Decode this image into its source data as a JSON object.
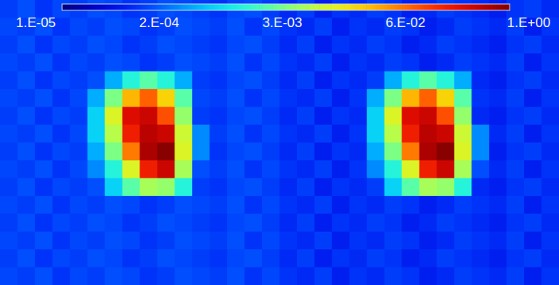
{
  "chart_data": {
    "type": "heatmap",
    "log": true,
    "tick_labels": false,
    "colorbar": {
      "range": [
        1e-05,
        1
      ],
      "ticks": [
        {
          "value": 1e-05,
          "label": "1.E-05"
        },
        {
          "value": 0.000178,
          "label": "2.E-04"
        },
        {
          "value": 0.00316,
          "label": "3.E-03"
        },
        {
          "value": 0.0562,
          "label": "6.E-02"
        },
        {
          "value": 1,
          "label": "1.E+00"
        }
      ]
    },
    "panels": [
      {
        "cells": [
          [
            8e-05,
            0.0001,
            7e-05,
            9e-05,
            8e-05,
            0.0001,
            9e-05,
            7e-05,
            8e-05,
            0.0001,
            9e-05,
            8e-05,
            7e-05,
            9e-05,
            0.0001,
            8e-05
          ],
          [
            9e-05,
            8e-05,
            0.0001,
            7e-05,
            9e-05,
            8e-05,
            0.0001,
            9e-05,
            7e-05,
            8e-05,
            0.0001,
            9e-05,
            8e-05,
            0.0001,
            7e-05,
            9e-05
          ],
          [
            8e-05,
            0.0001,
            7e-05,
            9e-05,
            8e-05,
            0.0001,
            9e-05,
            7e-05,
            8e-05,
            0.0001,
            9e-05,
            8e-05,
            7e-05,
            9e-05,
            0.0001,
            8e-05
          ],
          [
            9e-05,
            8e-05,
            0.0001,
            7e-05,
            9e-05,
            8e-05,
            0.0001,
            9e-05,
            7e-05,
            8e-05,
            0.0001,
            9e-05,
            8e-05,
            0.0001,
            7e-05,
            9e-05
          ],
          [
            8e-05,
            0.0001,
            7e-05,
            9e-05,
            8e-05,
            0.0001,
            0.0003,
            0.001,
            0.002,
            0.001,
            0.0003,
            8e-05,
            7e-05,
            9e-05,
            0.0001,
            8e-05
          ],
          [
            9e-05,
            8e-05,
            0.0001,
            7e-05,
            9e-05,
            0.0003,
            0.003,
            0.03,
            0.08,
            0.02,
            0.002,
            9e-05,
            8e-05,
            0.0001,
            7e-05,
            9e-05
          ],
          [
            8e-05,
            0.0001,
            7e-05,
            9e-05,
            8e-05,
            0.0005,
            0.01,
            0.3,
            0.4,
            0.1,
            0.004,
            8e-05,
            7e-05,
            9e-05,
            0.0001,
            8e-05
          ],
          [
            9e-05,
            8e-05,
            0.0001,
            7e-05,
            9e-05,
            0.0005,
            0.006,
            0.2,
            0.5,
            0.4,
            0.008,
            0.0002,
            8e-05,
            0.0001,
            7e-05,
            9e-05
          ],
          [
            8e-05,
            0.0001,
            7e-05,
            9e-05,
            8e-05,
            0.0003,
            0.003,
            0.06,
            0.6,
            0.9,
            0.01,
            0.0002,
            7e-05,
            9e-05,
            0.0001,
            8e-05
          ],
          [
            9e-05,
            8e-05,
            0.0001,
            7e-05,
            9e-05,
            0.0002,
            0.001,
            0.01,
            0.2,
            0.4,
            0.005,
            0.0001,
            8e-05,
            0.0001,
            7e-05,
            9e-05
          ],
          [
            8e-05,
            0.0001,
            7e-05,
            9e-05,
            8e-05,
            0.0001,
            0.0005,
            0.002,
            0.005,
            0.004,
            0.001,
            8e-05,
            7e-05,
            9e-05,
            0.0001,
            8e-05
          ],
          [
            9e-05,
            8e-05,
            0.0001,
            7e-05,
            9e-05,
            8e-05,
            0.0001,
            9e-05,
            7e-05,
            8e-05,
            0.0001,
            9e-05,
            8e-05,
            0.0001,
            7e-05,
            9e-05
          ],
          [
            8e-05,
            0.0001,
            7e-05,
            9e-05,
            8e-05,
            0.0001,
            9e-05,
            7e-05,
            8e-05,
            0.0001,
            9e-05,
            8e-05,
            7e-05,
            9e-05,
            0.0001,
            8e-05
          ],
          [
            9e-05,
            8e-05,
            0.0001,
            7e-05,
            9e-05,
            8e-05,
            0.0001,
            9e-05,
            7e-05,
            8e-05,
            0.0001,
            9e-05,
            8e-05,
            0.0001,
            7e-05,
            9e-05
          ],
          [
            8e-05,
            0.0001,
            7e-05,
            9e-05,
            8e-05,
            0.0001,
            9e-05,
            7e-05,
            8e-05,
            0.0001,
            9e-05,
            8e-05,
            7e-05,
            9e-05,
            0.0001,
            8e-05
          ],
          [
            9e-05,
            8e-05,
            0.0001,
            7e-05,
            9e-05,
            8e-05,
            0.0001,
            9e-05,
            7e-05,
            8e-05,
            0.0001,
            9e-05,
            8e-05,
            0.0001,
            7e-05,
            9e-05
          ]
        ]
      },
      {
        "cells": [
          [
            6e-05,
            8e-05,
            5e-05,
            7e-05,
            6e-05,
            8e-05,
            7e-05,
            5e-05,
            6e-05,
            8e-05,
            7e-05,
            6e-05,
            5e-05,
            7e-05,
            8e-05,
            6e-05
          ],
          [
            7e-05,
            6e-05,
            8e-05,
            5e-05,
            7e-05,
            6e-05,
            8e-05,
            7e-05,
            5e-05,
            6e-05,
            8e-05,
            7e-05,
            6e-05,
            8e-05,
            5e-05,
            7e-05
          ],
          [
            6e-05,
            8e-05,
            5e-05,
            7e-05,
            6e-05,
            8e-05,
            7e-05,
            5e-05,
            6e-05,
            8e-05,
            7e-05,
            6e-05,
            5e-05,
            7e-05,
            8e-05,
            6e-05
          ],
          [
            7e-05,
            6e-05,
            8e-05,
            5e-05,
            7e-05,
            6e-05,
            8e-05,
            7e-05,
            5e-05,
            6e-05,
            8e-05,
            7e-05,
            6e-05,
            8e-05,
            5e-05,
            7e-05
          ],
          [
            6e-05,
            8e-05,
            5e-05,
            7e-05,
            6e-05,
            8e-05,
            0.0003,
            0.001,
            0.002,
            0.001,
            0.0003,
            6e-05,
            5e-05,
            7e-05,
            8e-05,
            6e-05
          ],
          [
            7e-05,
            6e-05,
            8e-05,
            5e-05,
            7e-05,
            0.0003,
            0.003,
            0.03,
            0.08,
            0.02,
            0.002,
            7e-05,
            6e-05,
            8e-05,
            5e-05,
            7e-05
          ],
          [
            6e-05,
            8e-05,
            5e-05,
            7e-05,
            6e-05,
            0.0005,
            0.01,
            0.3,
            0.4,
            0.1,
            0.004,
            6e-05,
            5e-05,
            7e-05,
            8e-05,
            6e-05
          ],
          [
            7e-05,
            6e-05,
            8e-05,
            5e-05,
            7e-05,
            0.0005,
            0.006,
            0.2,
            0.5,
            0.4,
            0.008,
            0.0002,
            6e-05,
            8e-05,
            5e-05,
            7e-05
          ],
          [
            6e-05,
            8e-05,
            5e-05,
            7e-05,
            6e-05,
            0.0003,
            0.003,
            0.06,
            0.6,
            0.9,
            0.01,
            0.0002,
            5e-05,
            7e-05,
            8e-05,
            6e-05
          ],
          [
            7e-05,
            6e-05,
            8e-05,
            5e-05,
            7e-05,
            0.0002,
            0.001,
            0.01,
            0.2,
            0.4,
            0.005,
            0.0001,
            6e-05,
            8e-05,
            5e-05,
            7e-05
          ],
          [
            6e-05,
            8e-05,
            5e-05,
            7e-05,
            6e-05,
            8e-05,
            0.0005,
            0.002,
            0.005,
            0.004,
            0.001,
            6e-05,
            5e-05,
            7e-05,
            8e-05,
            6e-05
          ],
          [
            7e-05,
            6e-05,
            8e-05,
            5e-05,
            7e-05,
            6e-05,
            8e-05,
            7e-05,
            5e-05,
            6e-05,
            8e-05,
            7e-05,
            6e-05,
            8e-05,
            5e-05,
            7e-05
          ],
          [
            6e-05,
            8e-05,
            5e-05,
            7e-05,
            6e-05,
            8e-05,
            7e-05,
            5e-05,
            6e-05,
            8e-05,
            7e-05,
            6e-05,
            5e-05,
            7e-05,
            8e-05,
            6e-05
          ],
          [
            7e-05,
            6e-05,
            8e-05,
            5e-05,
            7e-05,
            6e-05,
            8e-05,
            7e-05,
            5e-05,
            6e-05,
            8e-05,
            7e-05,
            6e-05,
            8e-05,
            5e-05,
            7e-05
          ],
          [
            6e-05,
            8e-05,
            5e-05,
            7e-05,
            6e-05,
            8e-05,
            7e-05,
            5e-05,
            6e-05,
            8e-05,
            7e-05,
            6e-05,
            5e-05,
            7e-05,
            8e-05,
            6e-05
          ],
          [
            7e-05,
            6e-05,
            8e-05,
            5e-05,
            7e-05,
            6e-05,
            8e-05,
            7e-05,
            5e-05,
            6e-05,
            8e-05,
            7e-05,
            6e-05,
            8e-05,
            5e-05,
            7e-05
          ]
        ]
      }
    ]
  }
}
